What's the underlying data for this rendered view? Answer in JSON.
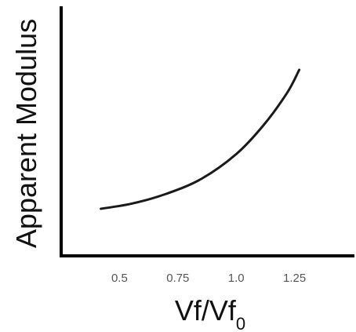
{
  "chart_data": {
    "type": "line",
    "xlabel": "Vf/Vf",
    "xlabel_subscript": "0",
    "ylabel": "Apparent Modulus",
    "x_ticks": [
      {
        "value": 0.5,
        "label": "0.5"
      },
      {
        "value": 0.75,
        "label": "0.75"
      },
      {
        "value": 1.0,
        "label": "1.0"
      },
      {
        "value": 1.25,
        "label": "1.25"
      }
    ],
    "xlim": [
      0.25,
      1.5
    ],
    "ylim": [
      0,
      1
    ],
    "y_ticks": [],
    "grid": false,
    "legend": false,
    "series": [
      {
        "x": [
          0.42,
          0.55,
          0.7,
          0.85,
          1.0,
          1.12,
          1.22,
          1.27
        ],
        "y": [
          0.19,
          0.21,
          0.25,
          0.31,
          0.41,
          0.53,
          0.66,
          0.75
        ]
      }
    ]
  }
}
